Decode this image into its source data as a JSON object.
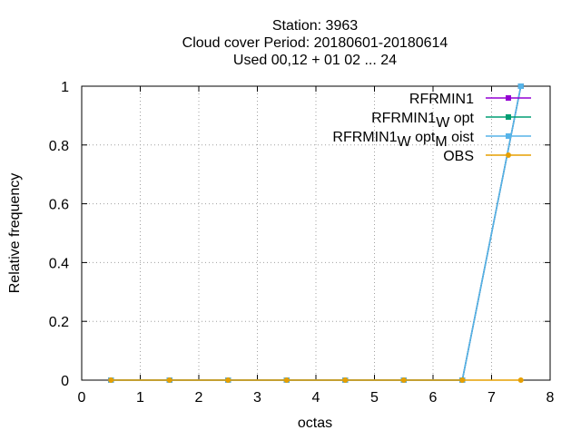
{
  "chart_data": {
    "type": "line",
    "title": {
      "line1": "Station:     3963",
      "line2": "Cloud cover  Period: 20180601-20180614",
      "line3": "Used  00,12  + 01 02 ... 24"
    },
    "xlabel": "octas",
    "ylabel": "Relative frequency",
    "xlim": [
      0,
      8
    ],
    "ylim": [
      0,
      1
    ],
    "xticks": [
      0,
      1,
      2,
      3,
      4,
      5,
      6,
      7,
      8
    ],
    "yticks": [
      0,
      0.2,
      0.4,
      0.6,
      0.8,
      1
    ],
    "ytick_labels": [
      "0",
      "0.2",
      "0.4",
      "0.6",
      "0.8",
      "1"
    ],
    "grid": true,
    "legend_position": "top-right",
    "x": [
      0.5,
      1.5,
      2.5,
      3.5,
      4.5,
      5.5,
      6.5,
      7.5
    ],
    "series": [
      {
        "name": "RFRMIN1",
        "name_base": "RFRMIN1",
        "name_sub": "",
        "name_mid": "",
        "name_sub2": "",
        "name_end": "",
        "color": "#9400d3",
        "marker": "square",
        "values": [
          0,
          0,
          0,
          0,
          0,
          0,
          0,
          1
        ]
      },
      {
        "name": "RFRMIN1_W opt",
        "name_base": "RFRMIN1",
        "name_sub": "W",
        "name_mid": " opt",
        "name_sub2": "",
        "name_end": "",
        "color": "#009e73",
        "marker": "square",
        "values": [
          0,
          0,
          0,
          0,
          0,
          0,
          0,
          1
        ]
      },
      {
        "name": "RFRMIN1_W opt_M oist",
        "name_base": "RFRMIN1",
        "name_sub": "W",
        "name_mid": " opt",
        "name_sub2": "M",
        "name_end": " oist",
        "color": "#56b4e9",
        "marker": "square",
        "values": [
          0,
          0,
          0,
          0,
          0,
          0,
          0,
          1
        ]
      },
      {
        "name": "OBS",
        "name_base": "OBS",
        "name_sub": "",
        "name_mid": "",
        "name_sub2": "",
        "name_end": "",
        "color": "#e69f00",
        "marker": "circle",
        "values": [
          0,
          0,
          0,
          0,
          0,
          0,
          0,
          0
        ]
      }
    ]
  }
}
